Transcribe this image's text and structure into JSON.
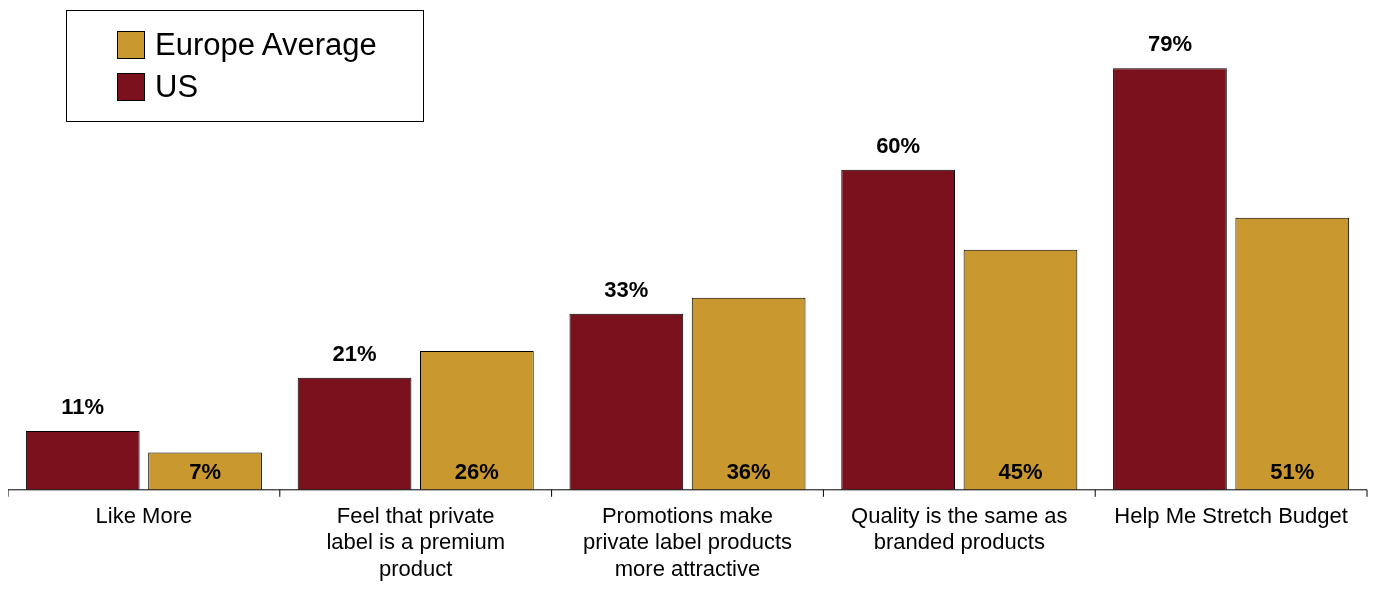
{
  "chart_data": {
    "type": "bar",
    "categories": [
      "Like More",
      "Feel that private label is a premium product",
      "Promotions make private label products more attractive",
      "Quality is the same as branded products",
      "Help Me Stretch Budget"
    ],
    "series": [
      {
        "name": "US",
        "color": "#7b111d",
        "values": [
          11,
          21,
          33,
          60,
          79
        ],
        "value_labels": [
          "11%",
          "21%",
          "33%",
          "60%",
          "79%"
        ]
      },
      {
        "name": "Europe Average",
        "color": "#c9982f",
        "values": [
          7,
          26,
          36,
          45,
          51
        ],
        "value_labels": [
          "7%",
          "26%",
          "36%",
          "45%",
          "51%"
        ]
      }
    ],
    "legend": "top left",
    "grid": false,
    "tick_labels": "x"
  }
}
